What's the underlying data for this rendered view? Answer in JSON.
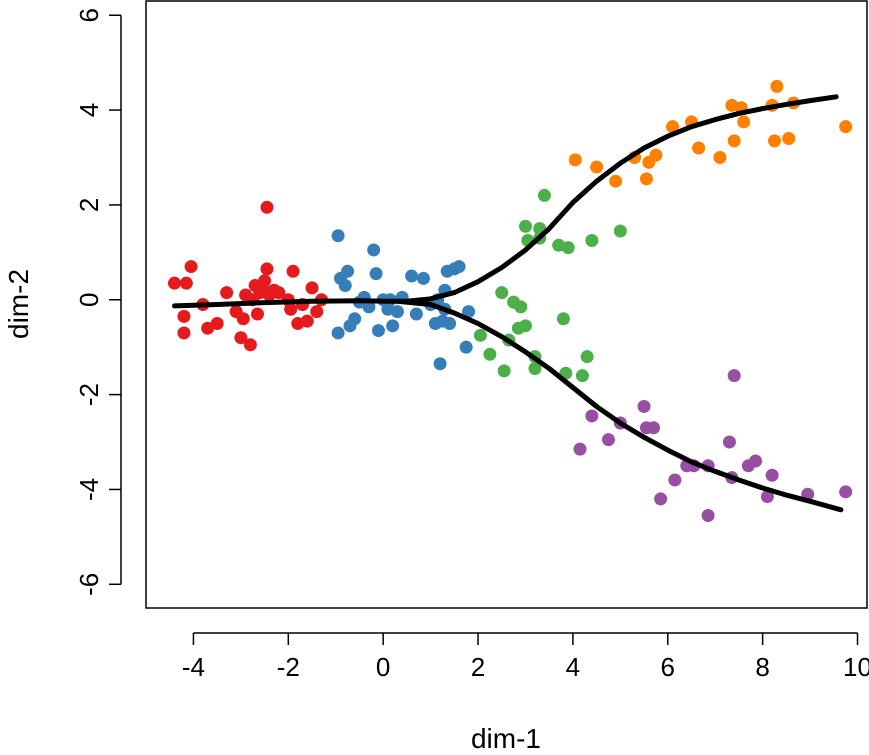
{
  "chart_data": {
    "type": "scatter",
    "title": "",
    "xlabel": "dim-1",
    "ylabel": "dim-2",
    "xlim": [
      -5,
      10.2
    ],
    "ylim": [
      -6.5,
      6.3
    ],
    "xticks": [
      -4,
      -2,
      0,
      2,
      4,
      6,
      8,
      10
    ],
    "yticks": [
      -6,
      -4,
      -2,
      0,
      2,
      4,
      6
    ],
    "xtick_labels": [
      "-4",
      "-2",
      "0",
      "2",
      "4",
      "6",
      "8",
      "10"
    ],
    "ytick_labels": [
      "-6",
      "-4",
      "-2",
      "0",
      "2",
      "4",
      "6"
    ],
    "grid": false,
    "legend": "none",
    "series": [
      {
        "color": "#E41A1C",
        "points": [
          [
            -4.4,
            0.35
          ],
          [
            -4.2,
            -0.35
          ],
          [
            -4.2,
            -0.7
          ],
          [
            -4.15,
            0.35
          ],
          [
            -4.05,
            0.7
          ],
          [
            -3.8,
            -0.1
          ],
          [
            -3.7,
            -0.6
          ],
          [
            -3.5,
            -0.5
          ],
          [
            -3.3,
            0.15
          ],
          [
            -3.1,
            -0.25
          ],
          [
            -3.0,
            -0.8
          ],
          [
            -2.95,
            -0.4
          ],
          [
            -2.9,
            0.1
          ],
          [
            -2.8,
            -0.95
          ],
          [
            -2.75,
            0.0
          ],
          [
            -2.7,
            0.3
          ],
          [
            -2.65,
            -0.3
          ],
          [
            -2.6,
            0.15
          ],
          [
            -2.55,
            0.25
          ],
          [
            -2.5,
            0.4
          ],
          [
            -2.45,
            0.65
          ],
          [
            -2.45,
            1.95
          ],
          [
            -2.4,
            0.1
          ],
          [
            -2.3,
            0.2
          ],
          [
            -2.2,
            0.15
          ],
          [
            -2.0,
            0.0
          ],
          [
            -1.95,
            -0.2
          ],
          [
            -1.9,
            0.6
          ],
          [
            -1.8,
            -0.5
          ],
          [
            -1.7,
            -0.1
          ],
          [
            -1.6,
            -0.45
          ],
          [
            -1.5,
            0.25
          ],
          [
            -1.4,
            -0.25
          ],
          [
            -1.3,
            0.0
          ]
        ]
      },
      {
        "color": "#377EB8",
        "points": [
          [
            -0.95,
            1.35
          ],
          [
            -0.95,
            -0.7
          ],
          [
            -0.9,
            0.45
          ],
          [
            -0.8,
            0.3
          ],
          [
            -0.75,
            0.6
          ],
          [
            -0.7,
            -0.55
          ],
          [
            -0.6,
            -0.4
          ],
          [
            -0.5,
            -0.05
          ],
          [
            -0.4,
            0.05
          ],
          [
            -0.3,
            -0.15
          ],
          [
            -0.2,
            1.05
          ],
          [
            -0.15,
            0.55
          ],
          [
            -0.1,
            -0.65
          ],
          [
            0.0,
            0.0
          ],
          [
            0.1,
            -0.2
          ],
          [
            0.15,
            0.0
          ],
          [
            0.2,
            -0.55
          ],
          [
            0.3,
            -0.25
          ],
          [
            0.4,
            0.05
          ],
          [
            0.6,
            0.5
          ],
          [
            0.7,
            -0.3
          ],
          [
            0.85,
            0.45
          ],
          [
            1.0,
            -0.1
          ],
          [
            1.1,
            -0.5
          ],
          [
            1.15,
            0.0
          ],
          [
            1.2,
            -1.35
          ],
          [
            1.25,
            -0.45
          ],
          [
            1.3,
            0.2
          ],
          [
            1.35,
            0.6
          ],
          [
            1.4,
            -0.5
          ],
          [
            1.5,
            0.65
          ],
          [
            1.6,
            0.7
          ],
          [
            1.75,
            -1.0
          ],
          [
            1.8,
            -0.25
          ],
          [
            1.3,
            -0.2
          ]
        ]
      },
      {
        "color": "#4DAF4A",
        "points": [
          [
            2.05,
            -0.75
          ],
          [
            2.25,
            -1.15
          ],
          [
            2.5,
            0.15
          ],
          [
            2.55,
            -1.5
          ],
          [
            2.65,
            -0.85
          ],
          [
            2.75,
            -0.05
          ],
          [
            2.85,
            -0.6
          ],
          [
            2.9,
            -0.15
          ],
          [
            3.0,
            1.55
          ],
          [
            3.0,
            -0.55
          ],
          [
            3.05,
            1.25
          ],
          [
            3.2,
            -1.2
          ],
          [
            3.2,
            -1.45
          ],
          [
            3.3,
            1.5
          ],
          [
            3.3,
            1.3
          ],
          [
            3.4,
            2.2
          ],
          [
            3.7,
            1.15
          ],
          [
            3.8,
            -0.4
          ],
          [
            3.85,
            -1.55
          ],
          [
            3.9,
            1.1
          ],
          [
            4.2,
            -1.6
          ],
          [
            4.3,
            -1.2
          ],
          [
            4.4,
            1.25
          ],
          [
            5.0,
            1.45
          ]
        ]
      },
      {
        "color": "#FF7F00",
        "points": [
          [
            4.05,
            2.95
          ],
          [
            4.5,
            2.8
          ],
          [
            4.9,
            2.5
          ],
          [
            5.3,
            3.0
          ],
          [
            5.55,
            2.55
          ],
          [
            5.6,
            2.9
          ],
          [
            5.75,
            3.05
          ],
          [
            6.1,
            3.65
          ],
          [
            6.5,
            3.75
          ],
          [
            6.65,
            3.2
          ],
          [
            7.1,
            3.0
          ],
          [
            7.35,
            4.1
          ],
          [
            7.4,
            3.35
          ],
          [
            7.55,
            4.05
          ],
          [
            7.6,
            3.75
          ],
          [
            8.2,
            4.1
          ],
          [
            8.25,
            3.35
          ],
          [
            8.3,
            4.5
          ],
          [
            8.55,
            3.4
          ],
          [
            8.65,
            4.15
          ],
          [
            9.75,
            3.65
          ]
        ]
      },
      {
        "color": "#984EA3",
        "points": [
          [
            4.15,
            -3.15
          ],
          [
            4.4,
            -2.45
          ],
          [
            4.75,
            -2.95
          ],
          [
            5.0,
            -2.6
          ],
          [
            5.5,
            -2.25
          ],
          [
            5.55,
            -2.7
          ],
          [
            5.7,
            -2.7
          ],
          [
            5.85,
            -4.2
          ],
          [
            6.15,
            -3.8
          ],
          [
            6.4,
            -3.5
          ],
          [
            6.55,
            -3.5
          ],
          [
            6.85,
            -3.5
          ],
          [
            6.85,
            -4.55
          ],
          [
            7.3,
            -3.0
          ],
          [
            7.4,
            -1.6
          ],
          [
            7.35,
            -3.75
          ],
          [
            7.7,
            -3.5
          ],
          [
            7.85,
            -3.4
          ],
          [
            8.1,
            -4.15
          ],
          [
            8.2,
            -3.7
          ],
          [
            8.95,
            -4.1
          ],
          [
            9.75,
            -4.05
          ]
        ]
      }
    ],
    "curves": [
      {
        "color": "#000000",
        "points": [
          [
            -4.4,
            -0.13
          ],
          [
            -3.5,
            -0.1
          ],
          [
            -2.5,
            -0.06
          ],
          [
            -1.5,
            -0.03
          ],
          [
            -0.5,
            -0.02
          ],
          [
            0.0,
            -0.03
          ],
          [
            0.5,
            -0.03
          ],
          [
            1.0,
            0.02
          ],
          [
            1.5,
            0.15
          ],
          [
            2.0,
            0.38
          ],
          [
            2.5,
            0.68
          ],
          [
            3.0,
            1.05
          ],
          [
            3.5,
            1.5
          ],
          [
            4.0,
            2.05
          ],
          [
            4.5,
            2.5
          ],
          [
            5.0,
            2.88
          ],
          [
            5.5,
            3.2
          ],
          [
            6.0,
            3.45
          ],
          [
            6.5,
            3.65
          ],
          [
            7.0,
            3.8
          ],
          [
            7.5,
            3.93
          ],
          [
            8.0,
            4.03
          ],
          [
            8.5,
            4.12
          ],
          [
            9.0,
            4.2
          ],
          [
            9.55,
            4.28
          ]
        ]
      },
      {
        "color": "#000000",
        "points": [
          [
            0.3,
            -0.03
          ],
          [
            1.0,
            -0.1
          ],
          [
            1.5,
            -0.28
          ],
          [
            2.0,
            -0.5
          ],
          [
            2.5,
            -0.78
          ],
          [
            3.0,
            -1.1
          ],
          [
            3.5,
            -1.45
          ],
          [
            4.0,
            -1.85
          ],
          [
            4.5,
            -2.25
          ],
          [
            5.0,
            -2.6
          ],
          [
            5.5,
            -2.9
          ],
          [
            6.0,
            -3.17
          ],
          [
            6.5,
            -3.42
          ],
          [
            7.0,
            -3.62
          ],
          [
            7.5,
            -3.8
          ],
          [
            8.0,
            -3.97
          ],
          [
            8.5,
            -4.12
          ],
          [
            9.0,
            -4.25
          ],
          [
            9.65,
            -4.43
          ]
        ]
      }
    ]
  }
}
